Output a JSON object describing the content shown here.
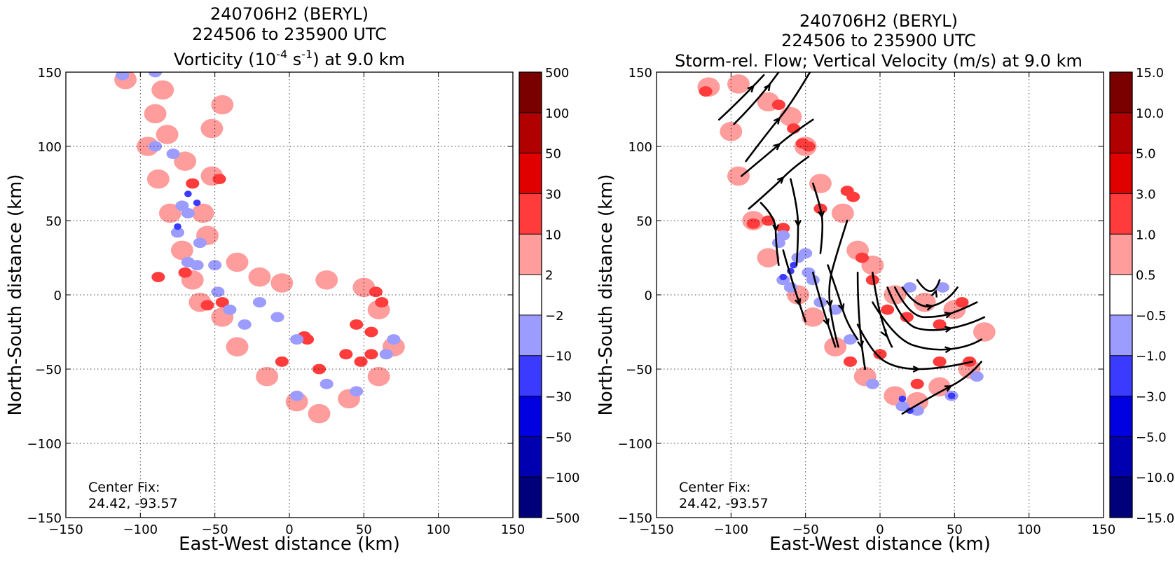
{
  "chart_data": [
    {
      "type": "heatmap",
      "title_lines": [
        "240706H2 (BERYL)",
        "224506 to 235900 UTC"
      ],
      "title_main": {
        "pre": "Vorticity (10",
        "sup1": "-4",
        "mid": " s",
        "sup2": "-1",
        "post": ") at 9.0 km"
      },
      "xlabel": "East-West distance (km)",
      "ylabel": "North-South distance (km)",
      "xlim": [
        -150,
        150
      ],
      "ylim": [
        -150,
        150
      ],
      "xticks": [
        -150,
        -100,
        -50,
        0,
        50,
        100,
        150
      ],
      "yticks": [
        -150,
        -100,
        -50,
        0,
        50,
        100,
        150
      ],
      "tick_labels": [
        "−150",
        "−100",
        "−50",
        "0",
        "50",
        "100",
        "150"
      ],
      "grid": true,
      "annotation": [
        "Center Fix:",
        "24.42, -93.57"
      ],
      "colorbar": {
        "levels": [
          "500",
          "100",
          "50",
          "30",
          "10",
          "2",
          "−2",
          "−10",
          "−30",
          "−50",
          "−100",
          "−500"
        ],
        "colors": [
          "#7a0000",
          "#b00000",
          "#e00000",
          "#ff3b3b",
          "#ff9c9c",
          "#ffffff",
          "#9c9cff",
          "#3b3bff",
          "#0000e0",
          "#0000b0",
          "#00007a"
        ]
      },
      "field": {
        "pink": [
          [
            -110,
            145
          ],
          [
            -85,
            138
          ],
          [
            -90,
            122
          ],
          [
            -82,
            108
          ],
          [
            -70,
            90
          ],
          [
            -52,
            112
          ],
          [
            -45,
            128
          ],
          [
            -52,
            80
          ],
          [
            -58,
            55
          ],
          [
            -55,
            40
          ],
          [
            -35,
            22
          ],
          [
            -20,
            12
          ],
          [
            -5,
            8
          ],
          [
            25,
            10
          ],
          [
            50,
            5
          ],
          [
            60,
            -10
          ],
          [
            70,
            -35
          ],
          [
            60,
            -55
          ],
          [
            40,
            -70
          ],
          [
            20,
            -80
          ],
          [
            5,
            -72
          ],
          [
            -15,
            -55
          ],
          [
            -35,
            -35
          ],
          [
            -45,
            -15
          ],
          [
            -60,
            -5
          ],
          [
            -65,
            10
          ],
          [
            -72,
            30
          ],
          [
            -80,
            55
          ],
          [
            -88,
            78
          ],
          [
            -95,
            100
          ]
        ],
        "red": [
          [
            -65,
            75
          ],
          [
            -47,
            78
          ],
          [
            -88,
            12
          ],
          [
            -70,
            15
          ],
          [
            -55,
            -7
          ],
          [
            -45,
            -5
          ],
          [
            -5,
            -45
          ],
          [
            20,
            -50
          ],
          [
            48,
            -45
          ],
          [
            55,
            -40
          ],
          [
            45,
            -20
          ],
          [
            55,
            -25
          ],
          [
            62,
            -5
          ],
          [
            58,
            2
          ],
          [
            12,
            -30
          ],
          [
            10,
            -28
          ],
          [
            38,
            -40
          ]
        ],
        "blue": [
          [
            -112,
            148
          ],
          [
            -90,
            150
          ],
          [
            -90,
            100
          ],
          [
            -78,
            95
          ],
          [
            -72,
            60
          ],
          [
            -68,
            55
          ],
          [
            -75,
            42
          ],
          [
            -60,
            35
          ],
          [
            -68,
            22
          ],
          [
            -62,
            20
          ],
          [
            -50,
            20
          ],
          [
            -48,
            2
          ],
          [
            -40,
            -10
          ],
          [
            -30,
            -20
          ],
          [
            -20,
            -5
          ],
          [
            -8,
            -15
          ],
          [
            5,
            -30
          ],
          [
            25,
            -60
          ],
          [
            45,
            -65
          ],
          [
            65,
            -40
          ],
          [
            70,
            -30
          ],
          [
            5,
            -68
          ]
        ],
        "darkblue": [
          [
            -68,
            68
          ],
          [
            -62,
            62
          ],
          [
            -75,
            46
          ]
        ]
      }
    },
    {
      "type": "heatmap",
      "title_lines": [
        "240706H2 (BERYL)",
        "224506 to 235900 UTC"
      ],
      "title_main": {
        "pre": "Storm-rel. Flow; Vertical Velocity (m/s) at 9.0 km",
        "sup1": "",
        "mid": "",
        "sup2": "",
        "post": ""
      },
      "xlabel": "East-West distance (km)",
      "ylabel": "North-South distance (km)",
      "xlim": [
        -150,
        150
      ],
      "ylim": [
        -150,
        150
      ],
      "xticks": [
        -150,
        -100,
        -50,
        0,
        50,
        100,
        150
      ],
      "yticks": [
        -150,
        -100,
        -50,
        0,
        50,
        100,
        150
      ],
      "tick_labels": [
        "−150",
        "−100",
        "−50",
        "0",
        "50",
        "100",
        "150"
      ],
      "grid": true,
      "annotation": [
        "Center Fix:",
        "24.42, -93.57"
      ],
      "colorbar": {
        "levels": [
          "15.0",
          "10.0",
          "5.0",
          "3.0",
          "1.0",
          "0.5",
          "−0.5",
          "−1.0",
          "−3.0",
          "−5.0",
          "−10.0",
          "−15.0"
        ],
        "colors": [
          "#7a0000",
          "#b00000",
          "#e00000",
          "#ff3b3b",
          "#ff9c9c",
          "#ffffff",
          "#9c9cff",
          "#3b3bff",
          "#0000e0",
          "#0000b0",
          "#00007a"
        ]
      },
      "field": {
        "pink": [
          [
            -115,
            140
          ],
          [
            -95,
            142
          ],
          [
            -75,
            130
          ],
          [
            -60,
            120
          ],
          [
            -50,
            100
          ],
          [
            -40,
            75
          ],
          [
            -25,
            55
          ],
          [
            -15,
            30
          ],
          [
            -5,
            20
          ],
          [
            10,
            0
          ],
          [
            30,
            -5
          ],
          [
            50,
            -10
          ],
          [
            70,
            -25
          ],
          [
            60,
            -50
          ],
          [
            40,
            -62
          ],
          [
            25,
            -72
          ],
          [
            10,
            -68
          ],
          [
            -10,
            -55
          ],
          [
            -30,
            -35
          ],
          [
            -45,
            -15
          ],
          [
            -55,
            0
          ],
          [
            -75,
            25
          ],
          [
            -85,
            50
          ],
          [
            -95,
            80
          ],
          [
            -100,
            110
          ]
        ],
        "red": [
          [
            -117,
            137
          ],
          [
            -68,
            128
          ],
          [
            -58,
            112
          ],
          [
            -52,
            102
          ],
          [
            -48,
            100
          ],
          [
            -22,
            70
          ],
          [
            -18,
            66
          ],
          [
            -75,
            50
          ],
          [
            -65,
            45
          ],
          [
            -40,
            58
          ],
          [
            -85,
            48
          ],
          [
            -12,
            25
          ],
          [
            -5,
            10
          ],
          [
            5,
            -10
          ],
          [
            18,
            -15
          ],
          [
            40,
            -20
          ],
          [
            55,
            -5
          ],
          [
            0,
            -40
          ],
          [
            -20,
            -45
          ],
          [
            40,
            -45
          ],
          [
            60,
            -45
          ],
          [
            25,
            -60
          ]
        ],
        "blue": [
          [
            -65,
            40
          ],
          [
            -50,
            28
          ],
          [
            -55,
            25
          ],
          [
            -48,
            15
          ],
          [
            -65,
            10
          ],
          [
            -60,
            5
          ],
          [
            -45,
            10
          ],
          [
            -40,
            -5
          ],
          [
            -30,
            -10
          ],
          [
            -20,
            -30
          ],
          [
            20,
            5
          ],
          [
            42,
            5
          ],
          [
            15,
            -75
          ],
          [
            25,
            -78
          ],
          [
            -5,
            -60
          ],
          [
            48,
            -68
          ],
          [
            65,
            -55
          ],
          [
            -68,
            35
          ]
        ],
        "darkblue": [
          [
            -58,
            20
          ],
          [
            -60,
            16
          ],
          [
            20,
            -78
          ],
          [
            15,
            -70
          ],
          [
            48,
            -68
          ],
          [
            -65,
            12
          ]
        ]
      },
      "streamlines": [
        [
          [
            -108,
            118
          ],
          [
            -92,
            133
          ],
          [
            -78,
            148
          ]
        ],
        [
          [
            -98,
            115
          ],
          [
            -80,
            133
          ],
          [
            -68,
            150
          ]
        ],
        [
          [
            -90,
            90
          ],
          [
            -75,
            110
          ],
          [
            -60,
            128
          ],
          [
            -47,
            150
          ]
        ],
        [
          [
            -93,
            80
          ],
          [
            -75,
            95
          ],
          [
            -60,
            108
          ],
          [
            -45,
            118
          ]
        ],
        [
          [
            -88,
            58
          ],
          [
            -72,
            72
          ],
          [
            -58,
            86
          ],
          [
            -48,
            93
          ]
        ],
        [
          [
            -80,
            62
          ],
          [
            -70,
            52
          ],
          [
            -70,
            35
          ],
          [
            -68,
            20
          ]
        ],
        [
          [
            -60,
            78
          ],
          [
            -55,
            58
          ],
          [
            -55,
            35
          ],
          [
            -56,
            20
          ]
        ],
        [
          [
            -45,
            75
          ],
          [
            -40,
            60
          ],
          [
            -38,
            45
          ],
          [
            -40,
            28
          ]
        ],
        [
          [
            -65,
            30
          ],
          [
            -58,
            5
          ],
          [
            -50,
            -18
          ]
        ],
        [
          [
            -45,
            15
          ],
          [
            -40,
            -5
          ],
          [
            -30,
            -35
          ]
        ],
        [
          [
            -35,
            20
          ],
          [
            -28,
            0
          ],
          [
            -22,
            -20
          ],
          [
            -15,
            -30
          ]
        ],
        [
          [
            -22,
            50
          ],
          [
            -30,
            25
          ],
          [
            -35,
            5
          ],
          [
            -32,
            -20
          ],
          [
            -28,
            -35
          ]
        ],
        [
          [
            -15,
            15
          ],
          [
            -15,
            -20
          ],
          [
            -10,
            -50
          ]
        ],
        [
          [
            -5,
            15
          ],
          [
            0,
            -20
          ],
          [
            8,
            -35
          ]
        ],
        [
          [
            -15,
            -20
          ],
          [
            -5,
            -40
          ],
          [
            12,
            -50
          ],
          [
            40,
            -50
          ],
          [
            62,
            -45
          ]
        ],
        [
          [
            -5,
            -5
          ],
          [
            10,
            -30
          ],
          [
            35,
            -38
          ],
          [
            60,
            -35
          ],
          [
            68,
            -30
          ]
        ],
        [
          [
            5,
            5
          ],
          [
            15,
            -20
          ],
          [
            35,
            -25
          ],
          [
            60,
            -20
          ],
          [
            70,
            -15
          ]
        ],
        [
          [
            10,
            5
          ],
          [
            20,
            -15
          ],
          [
            40,
            -15
          ],
          [
            55,
            -10
          ],
          [
            65,
            -5
          ]
        ],
        [
          [
            15,
            5
          ],
          [
            25,
            -10
          ],
          [
            45,
            -5
          ],
          [
            52,
            5
          ]
        ],
        [
          [
            25,
            10
          ],
          [
            35,
            -5
          ],
          [
            40,
            10
          ]
        ],
        [
          [
            15,
            -80
          ],
          [
            35,
            -68
          ],
          [
            60,
            -55
          ],
          [
            68,
            -45
          ]
        ]
      ]
    }
  ]
}
